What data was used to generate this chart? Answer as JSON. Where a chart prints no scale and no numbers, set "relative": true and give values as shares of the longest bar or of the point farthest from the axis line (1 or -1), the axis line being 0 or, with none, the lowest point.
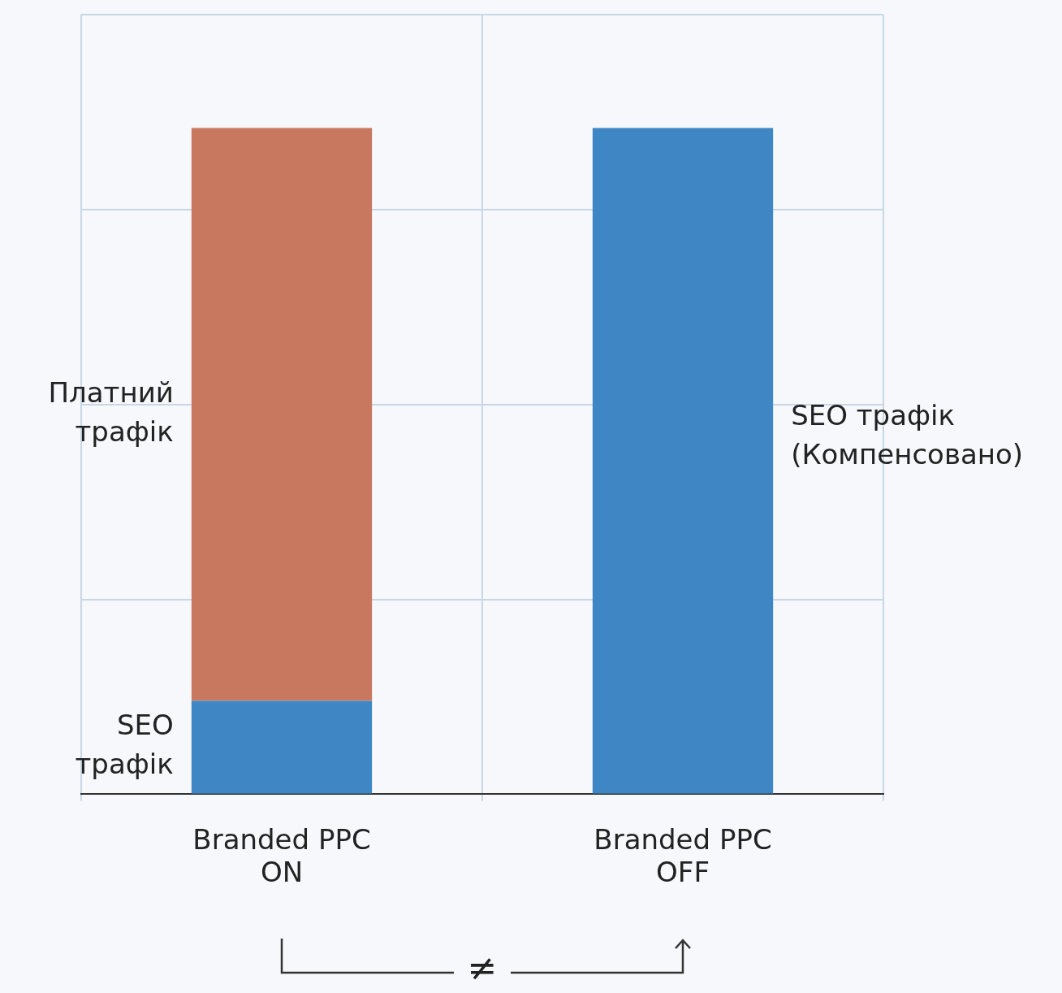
{
  "chart_data": {
    "type": "bar",
    "stacked": true,
    "relative": true,
    "grid": true,
    "legend": false,
    "categories": [
      "Branded PPC ON",
      "Branded PPC OFF"
    ],
    "series": [
      {
        "name": "SEO трафік",
        "color": "#3f86c4",
        "values": [
          0.14,
          1
        ]
      },
      {
        "name": "Платний трафік",
        "color": "#c97860",
        "values": [
          0.86,
          null
        ]
      }
    ],
    "annotations": [
      "SEO трафік (Компенсовано)",
      "≠"
    ]
  }
}
